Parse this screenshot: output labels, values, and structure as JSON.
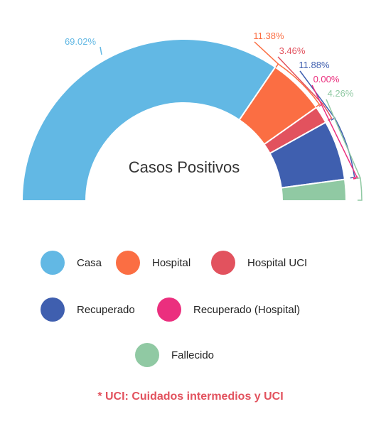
{
  "chart_data": {
    "type": "pie",
    "title": "Casos Positivos",
    "series": [
      {
        "name": "Casa",
        "value": 69.02,
        "label": "69.02%",
        "color": "#62b8e4"
      },
      {
        "name": "Hospital",
        "value": 11.38,
        "label": "11.38%",
        "color": "#fb6e43"
      },
      {
        "name": "Hospital UCI",
        "value": 3.46,
        "label": "3.46%",
        "color": "#e2525e"
      },
      {
        "name": "Recuperado",
        "value": 11.88,
        "label": "11.88%",
        "color": "#3f5faf"
      },
      {
        "name": "Recuperado (Hospital)",
        "value": 0.0,
        "label": "0.00%",
        "color": "#eb2f7e"
      },
      {
        "name": "Fallecido",
        "value": 4.26,
        "label": "4.26%",
        "color": "#90c9a3"
      }
    ],
    "legend_position": "bottom"
  },
  "legend": [
    {
      "label": "Casa",
      "color": "#62b8e4"
    },
    {
      "label": "Hospital",
      "color": "#fb6e43"
    },
    {
      "label": "Hospital UCI",
      "color": "#e2525e"
    },
    {
      "label": "Recuperado",
      "color": "#3f5faf"
    },
    {
      "label": "Recuperado (Hospital)",
      "color": "#eb2f7e"
    },
    {
      "label": "Fallecido",
      "color": "#90c9a3"
    }
  ],
  "footnote": "* UCI: Cuidados intermedios y UCI"
}
